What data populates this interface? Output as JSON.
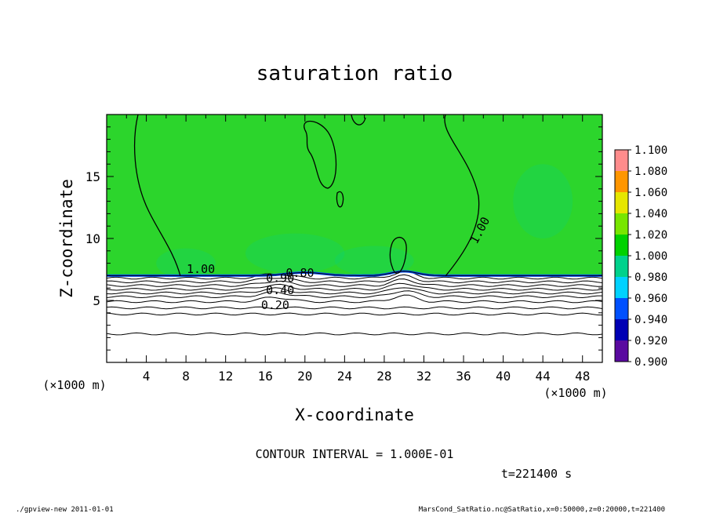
{
  "chart_data": {
    "type": "heatmap",
    "title": "saturation ratio",
    "xlabel": "X-coordinate",
    "ylabel": "Z-coordinate",
    "x_unit": "(×1000 m)",
    "y_unit": "(×1000 m)",
    "xlim": [
      0,
      50
    ],
    "ylim": [
      0,
      20
    ],
    "x_ticks": [
      4,
      8,
      12,
      16,
      20,
      24,
      28,
      32,
      36,
      40,
      44,
      48
    ],
    "y_ticks": [
      5,
      10,
      15
    ],
    "colorbar": {
      "levels": [
        0.9,
        0.92,
        0.94,
        0.96,
        0.98,
        1.0,
        1.02,
        1.04,
        1.06,
        1.08,
        1.1
      ],
      "labels": [
        "0.900",
        "0.920",
        "0.940",
        "0.960",
        "0.980",
        "1.000",
        "1.020",
        "1.040",
        "1.060",
        "1.080",
        "1.100"
      ],
      "colors": [
        "#5a0aa0",
        "#0000b4",
        "#0050ff",
        "#00d2ff",
        "#00d28c",
        "#00d200",
        "#78e600",
        "#e6e600",
        "#ff9600",
        "#ff3c28",
        "#ff8c8c"
      ]
    },
    "saturated_field_color": "#2cd52c",
    "contour_interval_text": "CONTOUR INTERVAL = 1.000E-01",
    "contour_labels": [
      "1.00",
      "1.00",
      "0.90",
      "0.80",
      "0.40",
      "0.20"
    ],
    "contour_levels_z": [
      6.8,
      6.5,
      6.2,
      5.9,
      5.6,
      5.3,
      4.9,
      4.4,
      3.9,
      2.3
    ],
    "saturation_boundary_z": 7.0,
    "time_label": "t=221400 s",
    "footer_left": "./gpview-new  2011-01-01",
    "footer_right": "MarsCond_SatRatio.nc@SatRatio,x=0:50000,z=0:20000,t=221400"
  }
}
